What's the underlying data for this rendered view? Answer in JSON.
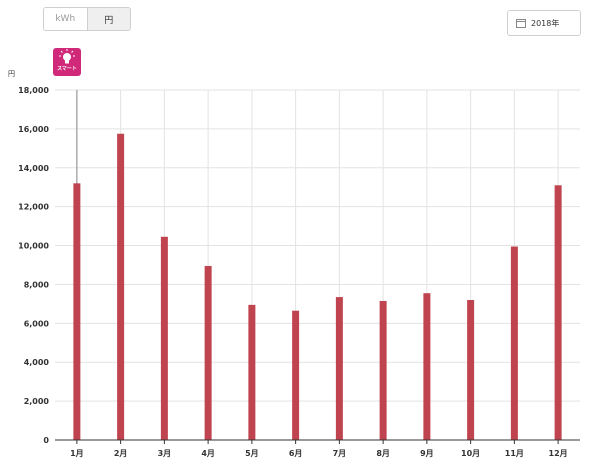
{
  "toggle": {
    "options": [
      "kWh",
      "円"
    ],
    "active": 1
  },
  "year_picker": {
    "label": "2018年",
    "icon": "calendar-icon"
  },
  "badge": {
    "label": "スマート",
    "icon": "lightbulb-icon",
    "color": "#d0297a"
  },
  "chart_data": {
    "type": "bar",
    "unit_label": "円",
    "categories": [
      "1月",
      "2月",
      "3月",
      "4月",
      "5月",
      "6月",
      "7月",
      "8月",
      "9月",
      "10月",
      "11月",
      "12月"
    ],
    "values": [
      13200,
      15750,
      10450,
      8950,
      6950,
      6650,
      7350,
      7150,
      7550,
      7200,
      9950,
      13100
    ],
    "ylim": [
      0,
      18000
    ],
    "yticks": [
      0,
      2000,
      4000,
      6000,
      8000,
      10000,
      12000,
      14000,
      16000,
      18000
    ],
    "ytick_labels": [
      "0",
      "2,000",
      "4,000",
      "6,000",
      "8,000",
      "10,000",
      "12,000",
      "14,000",
      "16,000",
      "18,000"
    ],
    "bar_color": "#c0444f",
    "grid": true,
    "highlight_category_index": 0
  }
}
